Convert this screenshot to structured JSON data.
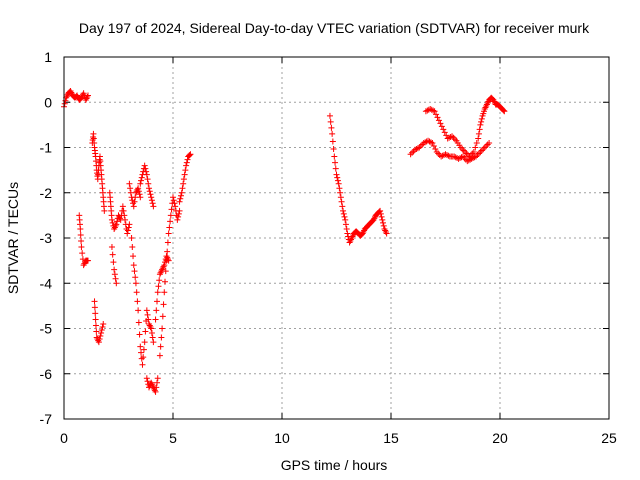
{
  "chart_data": {
    "type": "scatter",
    "title": "Day 197 of 2024, Sidereal Day-to-day VTEC variation (SDTVAR) for receiver murk",
    "xlabel": "GPS time / hours",
    "ylabel": "SDTVAR / TECUs",
    "xlim": [
      0,
      25
    ],
    "ylim": [
      -7,
      1
    ],
    "xticks": [
      0,
      5,
      10,
      15,
      20,
      25
    ],
    "yticks": [
      -7,
      -6,
      -5,
      -4,
      -3,
      -2,
      -1,
      0,
      1
    ],
    "grid": true,
    "marker": "+",
    "series": [
      {
        "name": "SDTVAR",
        "color": "#ff0000",
        "segments": [
          [
            [
              0.0,
              -0.1
            ],
            [
              0.1,
              0.1
            ],
            [
              0.2,
              0.2
            ],
            [
              0.3,
              0.25
            ],
            [
              0.4,
              0.15
            ],
            [
              0.5,
              0.1
            ],
            [
              0.6,
              0.15
            ],
            [
              0.7,
              0.05
            ],
            [
              0.8,
              0.1
            ],
            [
              0.9,
              0.2
            ],
            [
              1.0,
              0.05
            ],
            [
              1.1,
              0.15
            ]
          ],
          [
            [
              0.7,
              -2.5
            ],
            [
              0.75,
              -2.8
            ],
            [
              0.8,
              -3.2
            ],
            [
              0.9,
              -3.6
            ],
            [
              1.0,
              -3.5
            ],
            [
              1.1,
              -3.5
            ]
          ],
          [
            [
              1.4,
              -4.4
            ],
            [
              1.45,
              -4.8
            ],
            [
              1.5,
              -5.2
            ],
            [
              1.6,
              -5.3
            ],
            [
              1.7,
              -5.1
            ],
            [
              1.8,
              -4.9
            ]
          ],
          [
            [
              1.3,
              -0.9
            ],
            [
              1.35,
              -0.7
            ],
            [
              1.4,
              -1.0
            ],
            [
              1.45,
              -1.2
            ],
            [
              1.5,
              -1.5
            ],
            [
              1.55,
              -1.7
            ],
            [
              1.6,
              -1.4
            ],
            [
              1.65,
              -1.2
            ],
            [
              1.7,
              -1.5
            ],
            [
              1.75,
              -1.8
            ],
            [
              1.8,
              -2.1
            ],
            [
              1.85,
              -2.4
            ]
          ],
          [
            [
              2.1,
              -2.0
            ],
            [
              2.15,
              -2.3
            ],
            [
              2.2,
              -2.6
            ],
            [
              2.3,
              -2.8
            ],
            [
              2.4,
              -2.7
            ],
            [
              2.5,
              -2.5
            ],
            [
              2.6,
              -2.6
            ],
            [
              2.7,
              -2.3
            ],
            [
              2.8,
              -2.6
            ],
            [
              2.9,
              -2.9
            ],
            [
              3.0,
              -2.7
            ]
          ],
          [
            [
              2.2,
              -3.2
            ],
            [
              2.3,
              -3.7
            ],
            [
              2.4,
              -4.0
            ]
          ],
          [
            [
              3.0,
              -1.8
            ],
            [
              3.1,
              -2.1
            ],
            [
              3.2,
              -2.3
            ],
            [
              3.3,
              -2.0
            ],
            [
              3.4,
              -1.9
            ],
            [
              3.5,
              -2.1
            ]
          ],
          [
            [
              3.1,
              -3.0
            ],
            [
              3.2,
              -3.6
            ],
            [
              3.3,
              -4.0
            ],
            [
              3.4,
              -4.6
            ],
            [
              3.5,
              -5.4
            ],
            [
              3.6,
              -5.8
            ],
            [
              3.7,
              -5.3
            ],
            [
              3.8,
              -4.6
            ],
            [
              3.9,
              -4.9
            ],
            [
              4.0,
              -5.0
            ],
            [
              4.1,
              -5.3
            ]
          ],
          [
            [
              3.5,
              -1.8
            ],
            [
              3.6,
              -1.6
            ],
            [
              3.7,
              -1.4
            ],
            [
              3.8,
              -1.6
            ],
            [
              3.9,
              -1.9
            ],
            [
              4.0,
              -2.1
            ],
            [
              4.1,
              -2.3
            ]
          ],
          [
            [
              3.8,
              -6.1
            ],
            [
              3.9,
              -6.3
            ],
            [
              4.0,
              -6.2
            ],
            [
              4.1,
              -6.3
            ],
            [
              4.2,
              -6.4
            ],
            [
              4.3,
              -6.1
            ]
          ],
          [
            [
              4.2,
              -4.8
            ],
            [
              4.3,
              -4.2
            ],
            [
              4.4,
              -3.8
            ],
            [
              4.5,
              -3.7
            ],
            [
              4.6,
              -3.6
            ],
            [
              4.7,
              -3.4
            ],
            [
              4.8,
              -3.5
            ]
          ],
          [
            [
              4.4,
              -5.6
            ],
            [
              4.5,
              -5.0
            ],
            [
              4.6,
              -4.2
            ],
            [
              4.7,
              -3.5
            ],
            [
              4.8,
              -2.9
            ],
            [
              4.9,
              -2.5
            ],
            [
              5.0,
              -2.1
            ],
            [
              5.1,
              -2.3
            ],
            [
              5.2,
              -2.6
            ],
            [
              5.3,
              -2.4
            ]
          ],
          [
            [
              5.3,
              -2.2
            ],
            [
              5.4,
              -2.0
            ],
            [
              5.5,
              -1.7
            ],
            [
              5.6,
              -1.4
            ],
            [
              5.7,
              -1.2
            ],
            [
              5.8,
              -1.15
            ]
          ],
          [
            [
              12.2,
              -0.3
            ],
            [
              12.3,
              -0.7
            ],
            [
              12.4,
              -1.2
            ],
            [
              12.5,
              -1.6
            ],
            [
              12.6,
              -1.8
            ],
            [
              12.7,
              -2.1
            ],
            [
              12.8,
              -2.4
            ],
            [
              12.9,
              -2.6
            ],
            [
              13.0,
              -2.9
            ],
            [
              13.1,
              -3.1
            ],
            [
              13.2,
              -3.0
            ],
            [
              13.3,
              -2.9
            ],
            [
              13.4,
              -2.85
            ],
            [
              13.5,
              -2.9
            ],
            [
              13.6,
              -2.95
            ],
            [
              13.7,
              -2.9
            ],
            [
              13.8,
              -2.8
            ],
            [
              13.9,
              -2.75
            ],
            [
              14.0,
              -2.7
            ],
            [
              14.1,
              -2.65
            ],
            [
              14.2,
              -2.6
            ],
            [
              14.3,
              -2.5
            ],
            [
              14.4,
              -2.45
            ],
            [
              14.5,
              -2.4
            ],
            [
              14.6,
              -2.6
            ],
            [
              14.7,
              -2.8
            ],
            [
              14.8,
              -2.9
            ]
          ],
          [
            [
              15.9,
              -1.15
            ],
            [
              16.1,
              -1.05
            ],
            [
              16.3,
              -1.0
            ],
            [
              16.5,
              -0.9
            ],
            [
              16.7,
              -0.85
            ],
            [
              16.9,
              -0.9
            ],
            [
              17.1,
              -1.1
            ],
            [
              17.3,
              -1.2
            ],
            [
              17.5,
              -1.15
            ],
            [
              17.7,
              -1.2
            ],
            [
              17.9,
              -1.2
            ],
            [
              18.1,
              -1.25
            ],
            [
              18.3,
              -1.2
            ],
            [
              18.5,
              -1.3
            ],
            [
              18.7,
              -1.25
            ],
            [
              18.9,
              -1.2
            ],
            [
              19.1,
              -1.1
            ],
            [
              19.3,
              -1.0
            ],
            [
              19.5,
              -0.9
            ]
          ],
          [
            [
              16.6,
              -0.2
            ],
            [
              16.8,
              -0.15
            ],
            [
              17.0,
              -0.2
            ],
            [
              17.2,
              -0.4
            ],
            [
              17.4,
              -0.6
            ],
            [
              17.6,
              -0.8
            ],
            [
              17.8,
              -0.75
            ],
            [
              18.0,
              -0.85
            ],
            [
              18.2,
              -1.0
            ],
            [
              18.4,
              -1.1
            ],
            [
              18.6,
              -1.2
            ],
            [
              18.8,
              -1.1
            ],
            [
              19.0,
              -0.8
            ],
            [
              19.1,
              -0.5
            ],
            [
              19.2,
              -0.3
            ],
            [
              19.3,
              -0.15
            ],
            [
              19.4,
              -0.05
            ],
            [
              19.5,
              0.05
            ],
            [
              19.6,
              0.1
            ],
            [
              19.7,
              0.05
            ],
            [
              19.8,
              -0.05
            ],
            [
              19.9,
              -0.05
            ],
            [
              20.0,
              -0.1
            ],
            [
              20.1,
              -0.15
            ],
            [
              20.2,
              -0.2
            ]
          ]
        ]
      }
    ]
  }
}
